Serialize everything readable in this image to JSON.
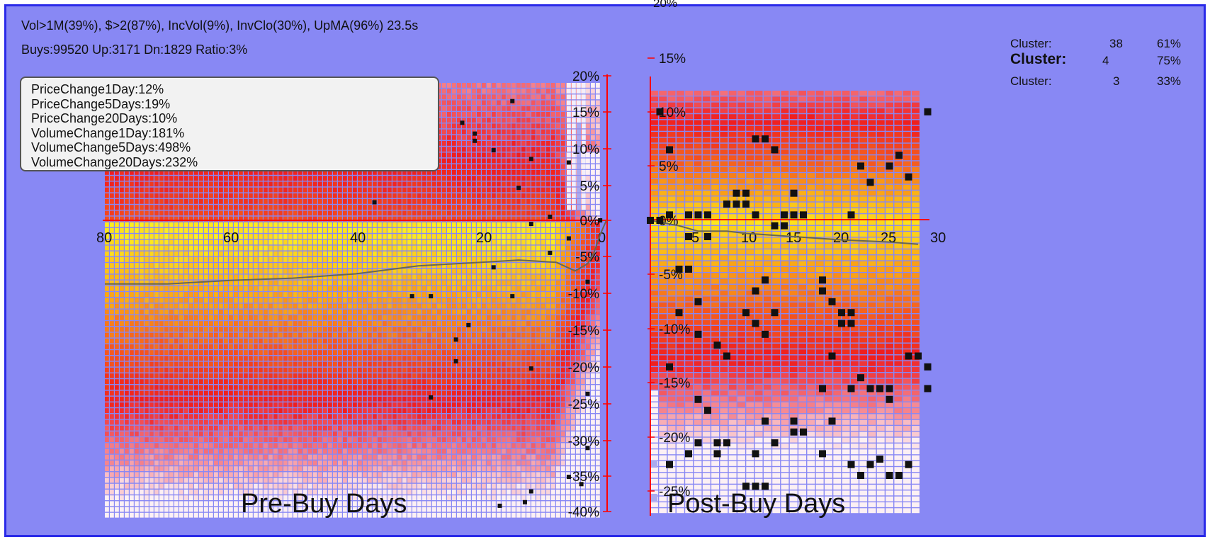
{
  "header": {
    "filters": "Vol>1M(39%), $>2(87%), IncVol(9%), InvClo(30%), UpMA(96%) 23.5s",
    "stats": "Buys:99520 Up:3171 Dn:1829 Ratio:3%",
    "top_tick": "20%"
  },
  "clusters": [
    {
      "label": "Cluster:",
      "id": "38",
      "pct": "61%",
      "bold": false
    },
    {
      "label": "Cluster:",
      "id": "4",
      "pct": "75%",
      "bold": true
    },
    {
      "label": "Cluster:",
      "id": "3",
      "pct": "33%",
      "bold": false
    }
  ],
  "legend": [
    "PriceChange1Day:12%",
    "PriceChange5Days:19%",
    "PriceChange20Days:10%",
    "VolumeChange1Day:181%",
    "VolumeChange5Days:498%",
    "VolumeChange20Days:232%"
  ],
  "colors": {
    "background": "#8888f4",
    "border": "#2a2ae8",
    "axis": "#ff0000",
    "marker": "#111111",
    "line": "#666655"
  },
  "chart_data": [
    {
      "type": "heatmap",
      "title": "Pre-Buy Days",
      "x_ticks": [
        "80",
        "60",
        "40",
        "20",
        "0"
      ],
      "y_ticks": [
        "20%",
        "15%",
        "10%",
        "5%",
        "0%",
        "-5%",
        "-10%",
        "-15%",
        "-20%",
        "-25%",
        "-30%",
        "-35%",
        "-40%"
      ],
      "xlim": [
        80,
        0
      ],
      "ylim": [
        -0.4,
        0.2
      ],
      "avg_line": [
        {
          "x": 80,
          "y": -0.088
        },
        {
          "x": 70,
          "y": -0.088
        },
        {
          "x": 60,
          "y": -0.083
        },
        {
          "x": 50,
          "y": -0.08
        },
        {
          "x": 40,
          "y": -0.074
        },
        {
          "x": 30,
          "y": -0.063
        },
        {
          "x": 20,
          "y": -0.058
        },
        {
          "x": 14,
          "y": -0.055
        },
        {
          "x": 8,
          "y": -0.058
        },
        {
          "x": 5,
          "y": -0.07
        },
        {
          "x": 3,
          "y": -0.06
        },
        {
          "x": 2,
          "y": -0.045
        },
        {
          "x": 1,
          "y": -0.02
        },
        {
          "x": 0,
          "y": 0
        }
      ],
      "markers": [
        {
          "x": 15,
          "y": 0.165
        },
        {
          "x": 23,
          "y": 0.135
        },
        {
          "x": 21,
          "y": 0.12
        },
        {
          "x": 21,
          "y": 0.11
        },
        {
          "x": 18,
          "y": 0.097
        },
        {
          "x": 12,
          "y": 0.085
        },
        {
          "x": 6,
          "y": 0.08
        },
        {
          "x": 14,
          "y": 0.045
        },
        {
          "x": 37,
          "y": 0.025
        },
        {
          "x": 9,
          "y": 0.005
        },
        {
          "x": 12,
          "y": -0.005
        },
        {
          "x": 9,
          "y": -0.045
        },
        {
          "x": 6,
          "y": -0.025
        },
        {
          "x": 18,
          "y": -0.065
        },
        {
          "x": 3,
          "y": -0.085
        },
        {
          "x": 31,
          "y": -0.105
        },
        {
          "x": 28,
          "y": -0.105
        },
        {
          "x": 15,
          "y": -0.105
        },
        {
          "x": 22,
          "y": -0.145
        },
        {
          "x": 24,
          "y": -0.165
        },
        {
          "x": 24,
          "y": -0.195
        },
        {
          "x": 12,
          "y": -0.205
        },
        {
          "x": 28,
          "y": -0.245
        },
        {
          "x": 3,
          "y": -0.24
        },
        {
          "x": 3,
          "y": -0.315
        },
        {
          "x": 6,
          "y": -0.355
        },
        {
          "x": 12,
          "y": -0.375
        },
        {
          "x": 4,
          "y": -0.365
        },
        {
          "x": 13,
          "y": -0.39
        },
        {
          "x": 17,
          "y": -0.395
        },
        {
          "x": 1,
          "y": 0
        }
      ]
    },
    {
      "type": "heatmap",
      "title": "Post-Buy Days",
      "x_ticks": [
        "5",
        "10",
        "15",
        "20",
        "25",
        "30"
      ],
      "y_ticks": [
        "15%",
        "10%",
        "5%",
        "0%",
        "-5%",
        "-10%",
        "-15%",
        "-20%",
        "-25%"
      ],
      "xlim": [
        0,
        30
      ],
      "ylim": [
        -0.25,
        0.15
      ],
      "avg_line": [
        {
          "x": 0,
          "y": 0
        },
        {
          "x": 3,
          "y": -0.005
        },
        {
          "x": 5,
          "y": -0.01
        },
        {
          "x": 8,
          "y": -0.01
        },
        {
          "x": 10,
          "y": -0.012
        },
        {
          "x": 15,
          "y": -0.015
        },
        {
          "x": 20,
          "y": -0.018
        },
        {
          "x": 25,
          "y": -0.02
        },
        {
          "x": 28,
          "y": -0.022
        }
      ],
      "markers": [
        {
          "x": 1,
          "y": 0.1
        },
        {
          "x": 2,
          "y": 0.065
        },
        {
          "x": 12,
          "y": 0.075
        },
        {
          "x": 11,
          "y": 0.075
        },
        {
          "x": 13,
          "y": 0.065
        },
        {
          "x": 22,
          "y": 0.05
        },
        {
          "x": 25,
          "y": 0.05
        },
        {
          "x": 26,
          "y": 0.06
        },
        {
          "x": 27,
          "y": 0.04
        },
        {
          "x": 29,
          "y": 0.1
        },
        {
          "x": 23,
          "y": 0.035
        },
        {
          "x": 9,
          "y": 0.025
        },
        {
          "x": 10,
          "y": 0.025
        },
        {
          "x": 9,
          "y": 0.015
        },
        {
          "x": 8,
          "y": 0.015
        },
        {
          "x": 10,
          "y": 0.015
        },
        {
          "x": 11,
          "y": 0.005
        },
        {
          "x": 15,
          "y": 0.025
        },
        {
          "x": 14,
          "y": 0.005
        },
        {
          "x": 15,
          "y": 0.005
        },
        {
          "x": 16,
          "y": 0.005
        },
        {
          "x": 21,
          "y": 0.005
        },
        {
          "x": 0,
          "y": 0
        },
        {
          "x": 1,
          "y": 0
        },
        {
          "x": 2,
          "y": 0.005
        },
        {
          "x": 4,
          "y": 0.005
        },
        {
          "x": 5,
          "y": 0.005
        },
        {
          "x": 6,
          "y": 0.005
        },
        {
          "x": 13,
          "y": -0.005
        },
        {
          "x": 14,
          "y": -0.005
        },
        {
          "x": 4,
          "y": -0.015
        },
        {
          "x": 6,
          "y": -0.015
        },
        {
          "x": 3,
          "y": -0.045
        },
        {
          "x": 4,
          "y": -0.045
        },
        {
          "x": 12,
          "y": -0.055
        },
        {
          "x": 11,
          "y": -0.065
        },
        {
          "x": 18,
          "y": -0.055
        },
        {
          "x": 18,
          "y": -0.065
        },
        {
          "x": 19,
          "y": -0.075
        },
        {
          "x": 13,
          "y": -0.085
        },
        {
          "x": 5,
          "y": -0.075
        },
        {
          "x": 3,
          "y": -0.085
        },
        {
          "x": 10,
          "y": -0.085
        },
        {
          "x": 20,
          "y": -0.085
        },
        {
          "x": 21,
          "y": -0.085
        },
        {
          "x": 20,
          "y": -0.095
        },
        {
          "x": 21,
          "y": -0.095
        },
        {
          "x": 11,
          "y": -0.095
        },
        {
          "x": 12,
          "y": -0.105
        },
        {
          "x": 5,
          "y": -0.105
        },
        {
          "x": 7,
          "y": -0.115
        },
        {
          "x": 8,
          "y": -0.125
        },
        {
          "x": 2,
          "y": -0.135
        },
        {
          "x": 19,
          "y": -0.125
        },
        {
          "x": 27,
          "y": -0.125
        },
        {
          "x": 28,
          "y": -0.125
        },
        {
          "x": 29,
          "y": -0.135
        },
        {
          "x": 22,
          "y": -0.145
        },
        {
          "x": 18,
          "y": -0.155
        },
        {
          "x": 21,
          "y": -0.155
        },
        {
          "x": 23,
          "y": -0.155
        },
        {
          "x": 24,
          "y": -0.155
        },
        {
          "x": 25,
          "y": -0.155
        },
        {
          "x": 29,
          "y": -0.155
        },
        {
          "x": 5,
          "y": -0.165
        },
        {
          "x": 6,
          "y": -0.175
        },
        {
          "x": 25,
          "y": -0.165
        },
        {
          "x": 12,
          "y": -0.185
        },
        {
          "x": 15,
          "y": -0.185
        },
        {
          "x": 19,
          "y": -0.185
        },
        {
          "x": 15,
          "y": -0.195
        },
        {
          "x": 16,
          "y": -0.195
        },
        {
          "x": 5,
          "y": -0.205
        },
        {
          "x": 7,
          "y": -0.205
        },
        {
          "x": 8,
          "y": -0.205
        },
        {
          "x": 13,
          "y": -0.205
        },
        {
          "x": 11,
          "y": -0.215
        },
        {
          "x": 4,
          "y": -0.215
        },
        {
          "x": 7,
          "y": -0.215
        },
        {
          "x": 18,
          "y": -0.215
        },
        {
          "x": 2,
          "y": -0.225
        },
        {
          "x": 21,
          "y": -0.225
        },
        {
          "x": 22,
          "y": -0.235
        },
        {
          "x": 23,
          "y": -0.225
        },
        {
          "x": 24,
          "y": -0.22
        },
        {
          "x": 25,
          "y": -0.235
        },
        {
          "x": 26,
          "y": -0.235
        },
        {
          "x": 27,
          "y": -0.225
        },
        {
          "x": 10,
          "y": -0.245
        },
        {
          "x": 11,
          "y": -0.245
        },
        {
          "x": 12,
          "y": -0.245
        }
      ]
    }
  ]
}
